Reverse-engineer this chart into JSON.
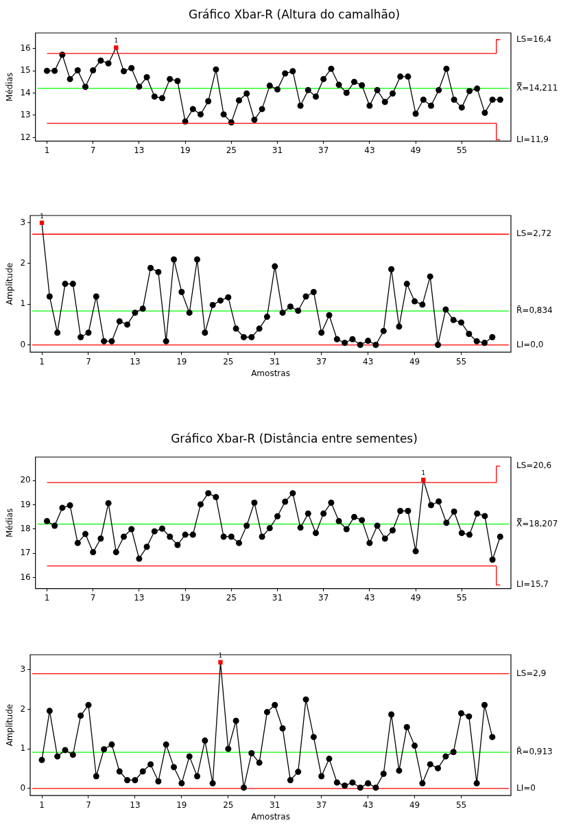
{
  "chart_data": [
    {
      "type": "line",
      "title": "Gráfico Xbar-R (Altura do camalhão)",
      "ylabel": "Médias",
      "grid": false,
      "legend": false,
      "x": [
        1,
        2,
        3,
        4,
        5,
        6,
        7,
        8,
        9,
        10,
        11,
        12,
        13,
        14,
        15,
        16,
        17,
        18,
        19,
        20,
        21,
        22,
        23,
        24,
        25,
        26,
        27,
        28,
        29,
        30,
        31,
        32,
        33,
        34,
        35,
        36,
        37,
        38,
        39,
        40,
        41,
        42,
        43,
        44,
        45,
        46,
        47,
        48,
        49,
        50,
        51,
        52,
        53,
        54,
        55,
        56,
        57,
        58,
        59,
        60
      ],
      "xlim": [
        -0.5,
        61.4
      ],
      "xticks": [
        1,
        7,
        13,
        19,
        25,
        31,
        37,
        43,
        49,
        55
      ],
      "ylim": [
        11.84,
        16.7
      ],
      "yticks": [
        12,
        13,
        14,
        15,
        16
      ],
      "series": [
        {
          "color": "#000000",
          "marker": "none",
          "values": [
            15.0,
            15.0,
            15.72,
            14.63,
            15.02,
            14.28,
            15.02,
            15.46,
            15.33,
            16.04,
            14.98,
            15.12,
            14.29,
            14.71,
            13.84,
            13.77,
            14.63,
            14.54,
            12.72,
            13.28,
            13.04,
            13.63,
            15.06,
            13.04,
            12.68,
            13.67,
            13.98,
            12.8,
            13.28,
            14.33,
            14.16,
            14.88,
            14.98,
            13.43,
            14.13,
            13.84,
            14.63,
            15.09,
            14.37,
            14.01,
            14.5,
            14.35,
            13.43,
            14.13,
            13.6,
            13.98,
            14.74,
            14.74,
            13.07,
            13.7,
            13.43,
            14.13,
            15.09,
            13.7,
            13.35,
            14.09,
            14.2,
            13.11,
            13.7,
            13.7
          ]
        },
        {
          "type": "scatter",
          "color": "#000000",
          "marker": "circle",
          "values": [
            15.0,
            15.0,
            15.72,
            14.63,
            15.02,
            14.28,
            15.02,
            15.46,
            15.33,
            null,
            14.98,
            15.12,
            14.29,
            14.71,
            13.84,
            13.77,
            14.63,
            14.54,
            12.72,
            13.28,
            13.04,
            13.63,
            15.06,
            13.04,
            12.68,
            13.67,
            13.98,
            12.8,
            13.28,
            14.33,
            14.16,
            14.88,
            14.98,
            13.43,
            14.13,
            13.84,
            14.63,
            15.09,
            14.37,
            14.01,
            14.5,
            14.35,
            13.43,
            14.13,
            13.6,
            13.98,
            14.74,
            14.74,
            13.07,
            13.7,
            13.43,
            14.13,
            15.09,
            13.7,
            13.35,
            14.09,
            14.2,
            13.11,
            13.7,
            13.7
          ]
        },
        {
          "type": "scatter",
          "color": "#ff0000",
          "marker": "square",
          "x": [
            10
          ],
          "values": [
            16.04
          ]
        },
        {
          "name": "LS=16,4",
          "color": "#ff0000",
          "marker": "none",
          "x": [
            1,
            59.5,
            59.5,
            60
          ],
          "values": [
            15.78,
            15.78,
            16.4,
            16.4
          ]
        },
        {
          "name": "LI=11,9",
          "color": "#ff0000",
          "marker": "none",
          "x": [
            1,
            59.5,
            59.5,
            60
          ],
          "values": [
            12.64,
            12.64,
            11.9,
            11.9
          ]
        }
      ],
      "ref_lines": [
        {
          "axis": "y",
          "value": 14.211,
          "label": "X̿=14,211",
          "color": "#00ff00"
        }
      ],
      "annotations": [
        {
          "text": "1",
          "x": 10,
          "y": 16.04
        }
      ]
    },
    {
      "type": "line",
      "xlabel": "Amostras",
      "ylabel": "Amplitude",
      "grid": false,
      "legend": false,
      "x": [
        1,
        2,
        3,
        4,
        5,
        6,
        7,
        8,
        9,
        10,
        11,
        12,
        13,
        14,
        15,
        16,
        17,
        18,
        19,
        20,
        21,
        22,
        23,
        24,
        25,
        26,
        27,
        28,
        29,
        30,
        31,
        32,
        33,
        34,
        35,
        36,
        37,
        38,
        39,
        40,
        41,
        42,
        43,
        44,
        45,
        46,
        47,
        48,
        49,
        50,
        51,
        52,
        53,
        54,
        55,
        56,
        57,
        58,
        59
      ],
      "xlim": [
        -0.5,
        61.4
      ],
      "xticks": [
        1,
        7,
        13,
        19,
        25,
        31,
        37,
        43,
        49,
        55
      ],
      "ylim": [
        -0.18,
        3.18
      ],
      "yticks": [
        0,
        1,
        2,
        3
      ],
      "series": [
        {
          "color": "#000000",
          "marker": "none",
          "values": [
            3.0,
            1.19,
            0.3,
            1.5,
            1.5,
            0.19,
            0.3,
            1.19,
            0.09,
            0.09,
            0.58,
            0.5,
            0.79,
            0.89,
            1.89,
            1.79,
            0.09,
            2.1,
            1.3,
            0.79,
            2.1,
            0.3,
            0.98,
            1.09,
            1.17,
            0.4,
            0.19,
            0.19,
            0.4,
            0.69,
            1.93,
            0.79,
            0.94,
            0.84,
            1.19,
            1.3,
            0.3,
            0.73,
            0.14,
            0.05,
            0.14,
            0.0,
            0.1,
            0.0,
            0.34,
            1.86,
            0.45,
            1.5,
            1.07,
            0.99,
            1.68,
            0.0,
            0.87,
            0.61,
            0.55,
            0.27,
            0.09,
            0.05,
            0.19
          ]
        },
        {
          "type": "scatter",
          "color": "#000000",
          "marker": "circle",
          "values": [
            null,
            1.19,
            0.3,
            1.5,
            1.5,
            0.19,
            0.3,
            1.19,
            0.09,
            0.09,
            0.58,
            0.5,
            0.79,
            0.89,
            1.89,
            1.79,
            0.09,
            2.1,
            1.3,
            0.79,
            2.1,
            0.3,
            0.98,
            1.09,
            1.17,
            0.4,
            0.19,
            0.19,
            0.4,
            0.69,
            1.93,
            0.79,
            0.94,
            0.84,
            1.19,
            1.3,
            0.3,
            0.73,
            0.14,
            0.05,
            0.14,
            0.0,
            0.1,
            0.0,
            0.34,
            1.86,
            0.45,
            1.5,
            1.07,
            0.99,
            1.68,
            0.0,
            0.87,
            0.61,
            0.55,
            0.27,
            0.09,
            0.05,
            0.19
          ]
        },
        {
          "type": "scatter",
          "color": "#ff0000",
          "marker": "square",
          "x": [
            1
          ],
          "values": [
            3.0
          ]
        }
      ],
      "ref_lines": [
        {
          "axis": "y",
          "value": 2.72,
          "label": "LS=2,72",
          "color": "#ff0000"
        },
        {
          "axis": "y",
          "value": 0.834,
          "label": "R̄=0,834",
          "color": "#00ff00"
        },
        {
          "axis": "y",
          "value": 0,
          "label": "LI=0,0",
          "color": "#ff0000"
        }
      ],
      "annotations": [
        {
          "text": "1",
          "x": 1,
          "y": 3.0
        }
      ]
    },
    {
      "type": "line",
      "title": "Gráfico Xbar-R (Distância entre sementes)",
      "ylabel": "Médias",
      "grid": false,
      "legend": false,
      "x": [
        1,
        2,
        3,
        4,
        5,
        6,
        7,
        8,
        9,
        10,
        11,
        12,
        13,
        14,
        15,
        16,
        17,
        18,
        19,
        20,
        21,
        22,
        23,
        24,
        25,
        26,
        27,
        28,
        29,
        30,
        31,
        32,
        33,
        34,
        35,
        36,
        37,
        38,
        39,
        40,
        41,
        42,
        43,
        44,
        45,
        46,
        47,
        48,
        49,
        50,
        51,
        52,
        53,
        54,
        55,
        56,
        57,
        58,
        59,
        60
      ],
      "xlim": [
        -0.5,
        61.4
      ],
      "xticks": [
        1,
        7,
        13,
        19,
        25,
        31,
        37,
        43,
        49,
        55
      ],
      "ylim": [
        15.55,
        20.97
      ],
      "yticks": [
        16,
        17,
        18,
        19,
        20
      ],
      "series": [
        {
          "color": "#000000",
          "marker": "none",
          "values": [
            18.33,
            18.14,
            18.88,
            18.98,
            17.43,
            17.8,
            17.05,
            17.61,
            19.07,
            17.05,
            17.69,
            18.0,
            16.78,
            17.27,
            17.91,
            18.02,
            17.69,
            17.35,
            17.77,
            17.77,
            19.02,
            19.48,
            19.32,
            17.69,
            17.69,
            17.43,
            18.14,
            19.09,
            17.69,
            18.04,
            18.53,
            19.13,
            19.48,
            18.06,
            18.64,
            17.84,
            18.64,
            19.09,
            18.33,
            18.0,
            18.5,
            18.37,
            17.43,
            18.14,
            17.61,
            17.95,
            18.75,
            18.75,
            17.09,
            20.03,
            18.99,
            19.14,
            18.26,
            18.72,
            17.84,
            17.77,
            18.64,
            18.54,
            16.74,
            17.69
          ]
        },
        {
          "type": "scatter",
          "color": "#000000",
          "marker": "circle",
          "values": [
            18.33,
            18.14,
            18.88,
            18.98,
            17.43,
            17.8,
            17.05,
            17.61,
            19.07,
            17.05,
            17.69,
            18.0,
            16.78,
            17.27,
            17.91,
            18.02,
            17.69,
            17.35,
            17.77,
            17.77,
            19.02,
            19.48,
            19.32,
            17.69,
            17.69,
            17.43,
            18.14,
            19.09,
            17.69,
            18.04,
            18.53,
            19.13,
            19.48,
            18.06,
            18.64,
            17.84,
            18.64,
            19.09,
            18.33,
            18.0,
            18.5,
            18.37,
            17.43,
            18.14,
            17.61,
            17.95,
            18.75,
            18.75,
            17.09,
            null,
            18.99,
            19.14,
            18.26,
            18.72,
            17.84,
            17.77,
            18.64,
            18.54,
            16.74,
            17.69
          ]
        },
        {
          "type": "scatter",
          "color": "#ff0000",
          "marker": "square",
          "x": [
            50
          ],
          "values": [
            20.03
          ]
        },
        {
          "name": "LS=20,6",
          "color": "#ff0000",
          "marker": "none",
          "x": [
            1,
            59.5,
            59.5,
            60
          ],
          "values": [
            19.92,
            19.92,
            20.6,
            20.6
          ]
        },
        {
          "name": "LI=15,7",
          "color": "#ff0000",
          "marker": "none",
          "x": [
            1,
            59.5,
            59.5,
            60
          ],
          "values": [
            16.48,
            16.48,
            15.7,
            15.7
          ]
        }
      ],
      "ref_lines": [
        {
          "axis": "y",
          "value": 18.207,
          "label": "X̿=18,207",
          "color": "#00ff00"
        }
      ],
      "annotations": [
        {
          "text": "1",
          "x": 50,
          "y": 20.03
        }
      ]
    },
    {
      "type": "line",
      "xlabel": "Amostras",
      "ylabel": "Amplitude",
      "grid": false,
      "legend": false,
      "x": [
        1,
        2,
        3,
        4,
        5,
        6,
        7,
        8,
        9,
        10,
        11,
        12,
        13,
        14,
        15,
        16,
        17,
        18,
        19,
        20,
        21,
        22,
        23,
        24,
        25,
        26,
        27,
        28,
        29,
        30,
        31,
        32,
        33,
        34,
        35,
        36,
        37,
        38,
        39,
        40,
        41,
        42,
        43,
        44,
        45,
        46,
        47,
        48,
        49,
        50,
        51,
        52,
        53,
        54,
        55,
        56,
        57,
        58,
        59
      ],
      "xlim": [
        -0.5,
        61.4
      ],
      "xticks": [
        1,
        7,
        13,
        19,
        25,
        31,
        37,
        43,
        49,
        55
      ],
      "ylim": [
        -0.18,
        3.38
      ],
      "yticks": [
        0,
        1,
        2,
        3
      ],
      "series": [
        {
          "color": "#000000",
          "marker": "none",
          "values": [
            0.72,
            1.96,
            0.81,
            0.97,
            0.85,
            1.84,
            2.11,
            0.31,
            0.99,
            1.11,
            0.43,
            0.21,
            0.21,
            0.43,
            0.61,
            0.18,
            1.11,
            0.54,
            0.13,
            0.81,
            0.31,
            1.21,
            0.13,
            3.19,
            1.0,
            1.71,
            0.02,
            0.89,
            0.65,
            1.93,
            2.11,
            1.52,
            0.21,
            0.42,
            2.25,
            1.3,
            0.31,
            0.75,
            0.15,
            0.07,
            0.15,
            0.02,
            0.13,
            0.02,
            0.37,
            1.87,
            0.45,
            1.55,
            1.08,
            0.13,
            0.61,
            0.51,
            0.81,
            0.92,
            1.9,
            1.82,
            0.13,
            2.11,
            1.3
          ]
        },
        {
          "type": "scatter",
          "color": "#000000",
          "marker": "circle",
          "values": [
            0.72,
            1.96,
            0.81,
            0.97,
            0.85,
            1.84,
            2.11,
            0.31,
            0.99,
            1.11,
            0.43,
            0.21,
            0.21,
            0.43,
            0.61,
            0.18,
            1.11,
            0.54,
            0.13,
            0.81,
            0.31,
            1.21,
            0.13,
            null,
            1.0,
            1.71,
            0.02,
            0.89,
            0.65,
            1.93,
            2.11,
            1.52,
            0.21,
            0.42,
            2.25,
            1.3,
            0.31,
            0.75,
            0.15,
            0.07,
            0.15,
            0.02,
            0.13,
            0.02,
            0.37,
            1.87,
            0.45,
            1.55,
            1.08,
            0.13,
            0.61,
            0.51,
            0.81,
            0.92,
            1.9,
            1.82,
            0.13,
            2.11,
            1.3
          ]
        },
        {
          "type": "scatter",
          "color": "#ff0000",
          "marker": "square",
          "x": [
            24
          ],
          "values": [
            3.19
          ]
        }
      ],
      "ref_lines": [
        {
          "axis": "y",
          "value": 2.9,
          "label": "LS=2,9",
          "color": "#ff0000"
        },
        {
          "axis": "y",
          "value": 0.913,
          "label": "R̄=0,913",
          "color": "#00ff00"
        },
        {
          "axis": "y",
          "value": 0,
          "label": "LI=0",
          "color": "#ff0000"
        }
      ],
      "annotations": [
        {
          "text": "1",
          "x": 24,
          "y": 3.19
        }
      ]
    }
  ]
}
